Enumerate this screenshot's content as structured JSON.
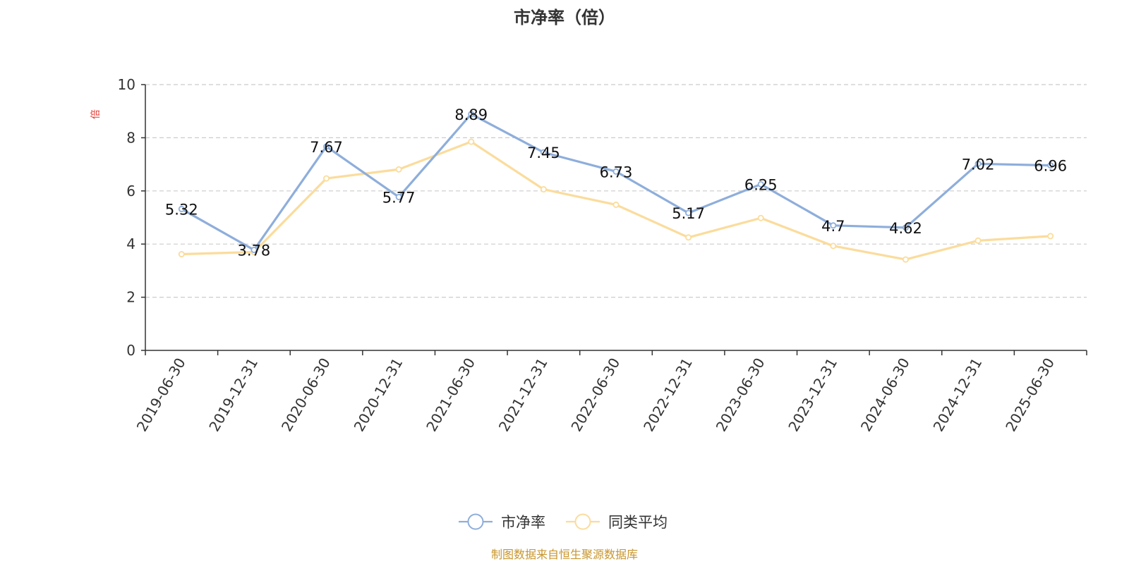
{
  "chart_data": {
    "type": "line",
    "title": "市净率（倍）",
    "ylabel": "倍",
    "ylim": [
      0,
      10
    ],
    "yticks": [
      0,
      2,
      4,
      6,
      8,
      10
    ],
    "grid": true,
    "legend_position": "bottom",
    "categories": [
      "2019-06-30",
      "2019-12-31",
      "2020-06-30",
      "2020-12-31",
      "2021-06-30",
      "2021-12-31",
      "2022-06-30",
      "2022-12-31",
      "2023-06-30",
      "2023-12-31",
      "2024-06-30",
      "2024-12-31",
      "2025-06-30"
    ],
    "series": [
      {
        "name": "市净率",
        "color": "#8eaedb",
        "show_labels": true,
        "values": [
          5.32,
          3.78,
          7.67,
          5.77,
          8.89,
          7.45,
          6.73,
          5.17,
          6.25,
          4.7,
          4.62,
          7.02,
          6.96
        ]
      },
      {
        "name": "同类平均",
        "color": "#fbdc9c",
        "show_labels": false,
        "values": [
          3.62,
          3.7,
          6.47,
          6.81,
          7.85,
          6.06,
          5.48,
          4.25,
          4.98,
          3.93,
          3.42,
          4.13,
          4.3
        ]
      }
    ]
  },
  "source_note": "制图数据来自恒生聚源数据库"
}
